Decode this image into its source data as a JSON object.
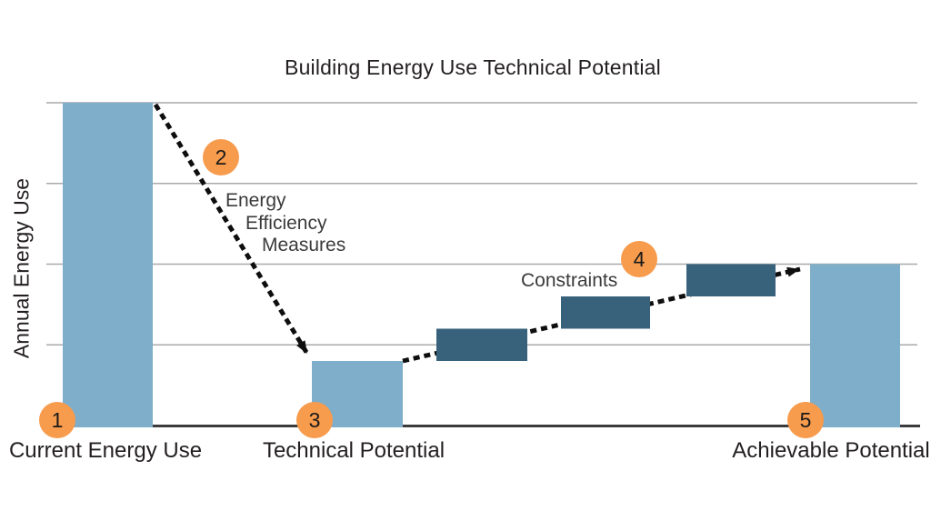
{
  "title": "Building Energy Use Technical Potential",
  "y_axis_label": "Annual Energy Use",
  "x_labels": [
    "Current Energy Use",
    "Technical Potential",
    "Achievable Potential"
  ],
  "annotations": {
    "markers": [
      {
        "label": "1"
      },
      {
        "label": "2"
      },
      {
        "label": "3"
      },
      {
        "label": "4"
      },
      {
        "label": "5"
      }
    ],
    "efficiency_lines": [
      "Energy",
      "Efficiency",
      "Measures"
    ],
    "constraints_note": "Constraints"
  },
  "colors": {
    "accent-orange": "#F79B4D",
    "bar-blue": "#7EAEC9",
    "step-dark": "#38617B",
    "gridline": "#A7A9AC",
    "baseline": "#3B3B3D",
    "arrow": "#0E0E0E",
    "text": "#231F20"
  },
  "chart_data": {
    "type": "bar",
    "subtype": "waterfall-steps",
    "title": "Building Energy Use Technical Potential",
    "xlabel": "",
    "ylabel": "Annual Energy Use",
    "categories": [
      "Current Energy Use",
      "Technical Potential",
      "Achievable Potential"
    ],
    "values": [
      100,
      20,
      50
    ],
    "step_segments": [
      [
        20,
        30
      ],
      [
        30,
        40
      ],
      [
        40,
        50
      ]
    ],
    "step_segments_label": "Constraints",
    "drop_arrow_label": "Energy Efficiency Measures",
    "ylim": [
      0,
      100
    ],
    "gridlines": [
      25,
      50,
      75,
      100
    ],
    "grid": true,
    "legend": false,
    "numeric_ticks_shown": false
  }
}
